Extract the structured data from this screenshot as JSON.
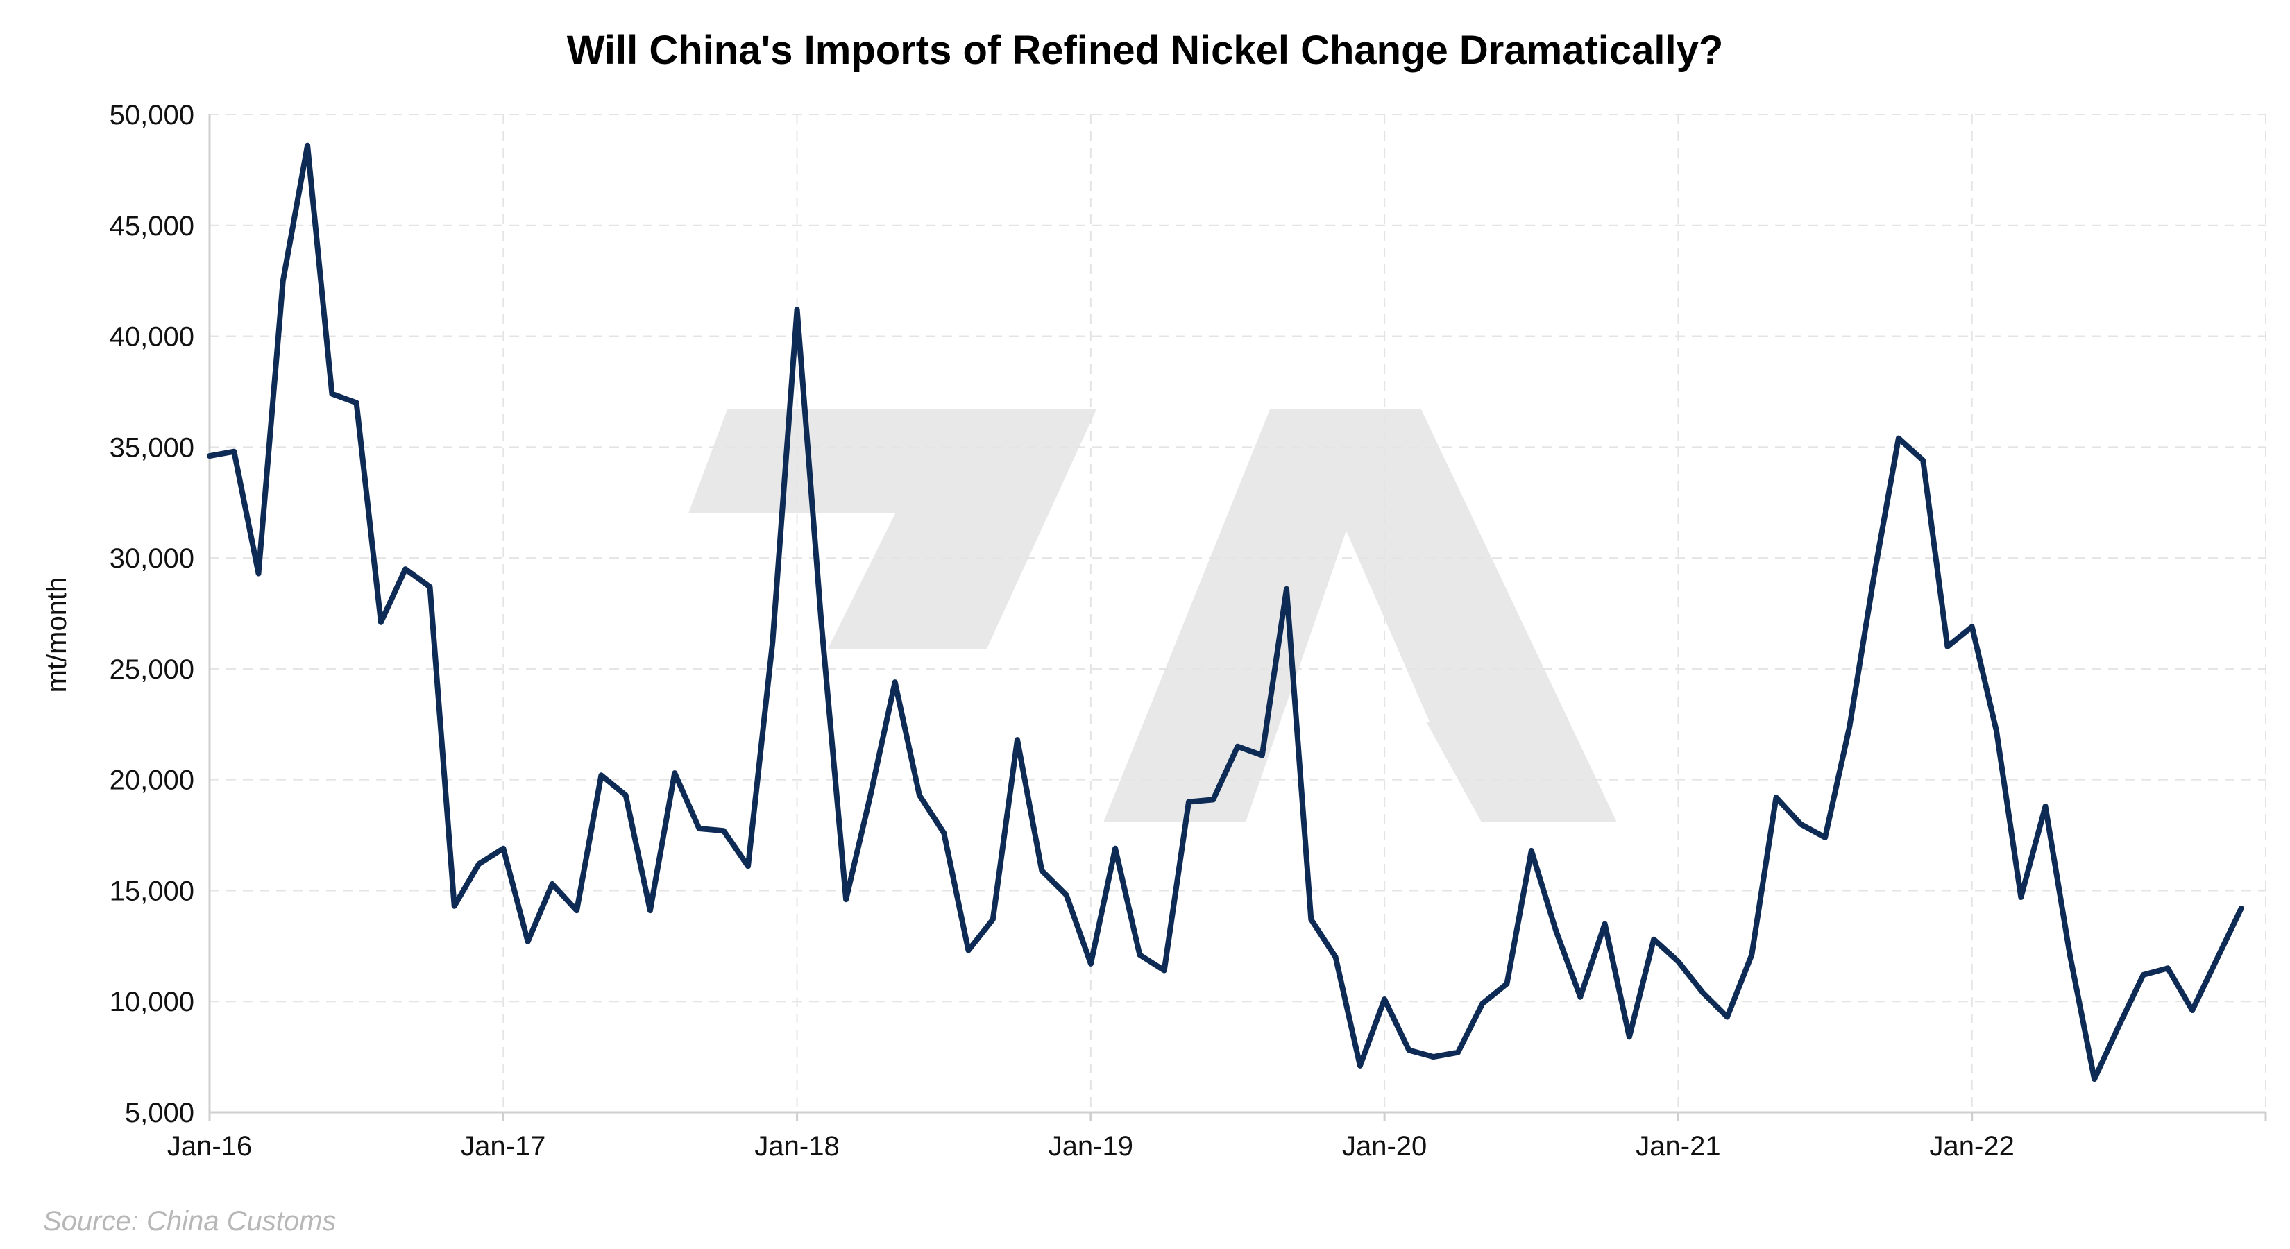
{
  "chart_data": {
    "type": "line",
    "title": "Will China's Imports of Refined Nickel Change Dramatically?",
    "ylabel": "mt/month",
    "xlabel": "",
    "source": "Source: China Customs",
    "ylim": [
      5000,
      50000
    ],
    "yticks": [
      5000,
      10000,
      15000,
      20000,
      25000,
      30000,
      35000,
      40000,
      45000,
      50000
    ],
    "ytick_labels": [
      "5,000",
      "10,000",
      "15,000",
      "20,000",
      "25,000",
      "30,000",
      "35,000",
      "40,000",
      "45,000",
      "50,000"
    ],
    "xlim": [
      0,
      84
    ],
    "xticks": [
      0,
      12,
      24,
      36,
      48,
      60,
      72,
      84
    ],
    "xtick_labels": [
      "Jan-16",
      "Jan-17",
      "Jan-18",
      "Jan-19",
      "Jan-20",
      "Jan-21",
      "Jan-22",
      ""
    ],
    "grid": true,
    "series": [
      {
        "color": "#0d2b55",
        "values": [
          34600,
          34800,
          29300,
          42500,
          48600,
          37400,
          37000,
          27100,
          29500,
          28700,
          14300,
          16200,
          16900,
          12700,
          15300,
          14100,
          20200,
          19300,
          14100,
          20300,
          17800,
          17700,
          16100,
          26200,
          41200,
          27000,
          14600,
          19300,
          24400,
          19300,
          17600,
          12300,
          13700,
          21800,
          15900,
          14800,
          11700,
          16900,
          12100,
          11400,
          19000,
          19100,
          21500,
          21100,
          28600,
          13700,
          12000,
          7100,
          10100,
          7800,
          7500,
          7700,
          9900,
          10800,
          16800,
          13200,
          10200,
          13500,
          8400,
          12800,
          11800,
          10400,
          9300,
          12100,
          19200,
          18000,
          17400,
          22400,
          29200,
          35400,
          34400,
          26000,
          26900,
          22200,
          14700,
          18800,
          12100,
          6500,
          8900,
          11200,
          11500,
          9600,
          11900,
          14200
        ]
      }
    ]
  }
}
